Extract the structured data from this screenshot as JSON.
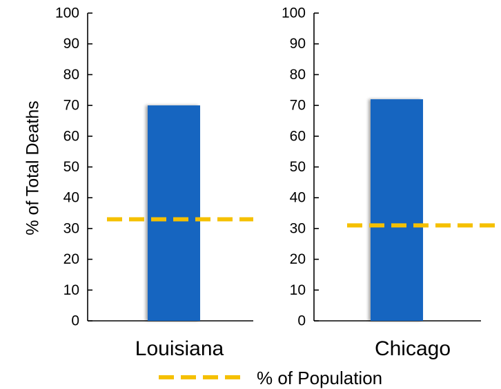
{
  "chart_data": {
    "type": "bar",
    "ylabel": "% of Total Deaths",
    "ylim": [
      0,
      100
    ],
    "yticks": [
      0,
      10,
      20,
      30,
      40,
      50,
      60,
      70,
      80,
      90,
      100
    ],
    "grid": false,
    "bar_color": "#1565C0",
    "reference_color": "#F5C000",
    "reference_name": "% of Population",
    "legend_position": "bottom",
    "panels": [
      {
        "category": "Louisiana",
        "value": 70,
        "population_pct": 33
      },
      {
        "category": "Chicago",
        "value": 72,
        "population_pct": 31
      }
    ]
  }
}
